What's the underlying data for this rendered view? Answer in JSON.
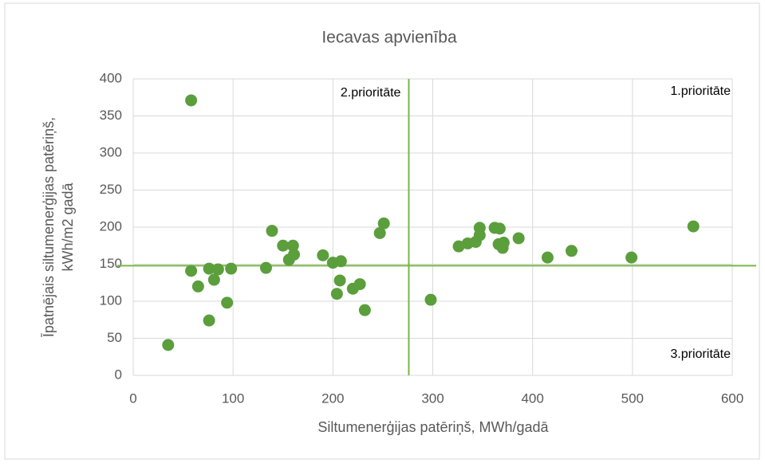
{
  "chart_data": {
    "type": "scatter",
    "title": "Iecavas apvienība",
    "x_label": "Siltumenerģijas patēriņš, MWh/gadā",
    "y_label": [
      "Īpatnējais siltumenerģijas patēriņš,",
      "kWh/m2 gadā"
    ],
    "annotations": [
      "2.prioritāte",
      "1.prioritāte",
      "3.prioritāte"
    ],
    "series": [
      {
        "name": "Iecavas apvienība",
        "color": "#5b9e3c",
        "x": [
          58,
          35,
          58,
          65,
          76,
          81,
          85,
          76,
          94,
          98,
          133,
          139,
          150,
          160,
          156,
          161,
          190,
          200,
          208,
          204,
          207,
          220,
          227,
          232,
          247,
          251,
          298,
          326,
          335,
          343,
          347,
          347,
          362,
          367,
          366,
          371,
          370,
          386,
          415,
          439,
          499,
          561
        ],
        "values": [
          371,
          41,
          141,
          120,
          144,
          129,
          143,
          74,
          98,
          144,
          145,
          195,
          175,
          175,
          156,
          163,
          162,
          152,
          154,
          110,
          128,
          117,
          123,
          88,
          192,
          205,
          102,
          174,
          178,
          180,
          199,
          189,
          199,
          198,
          177,
          179,
          172,
          185,
          159,
          168,
          159,
          201
        ]
      }
    ],
    "vline": 276,
    "hline": 148,
    "line_color": "#7ab648",
    "xlim": [
      0,
      600
    ],
    "xticks": [
      0,
      100,
      200,
      300,
      400,
      500,
      600
    ],
    "ylim": [
      0,
      400
    ],
    "yticks": [
      0,
      50,
      100,
      150,
      200,
      250,
      300,
      350,
      400
    ],
    "grid": true
  }
}
